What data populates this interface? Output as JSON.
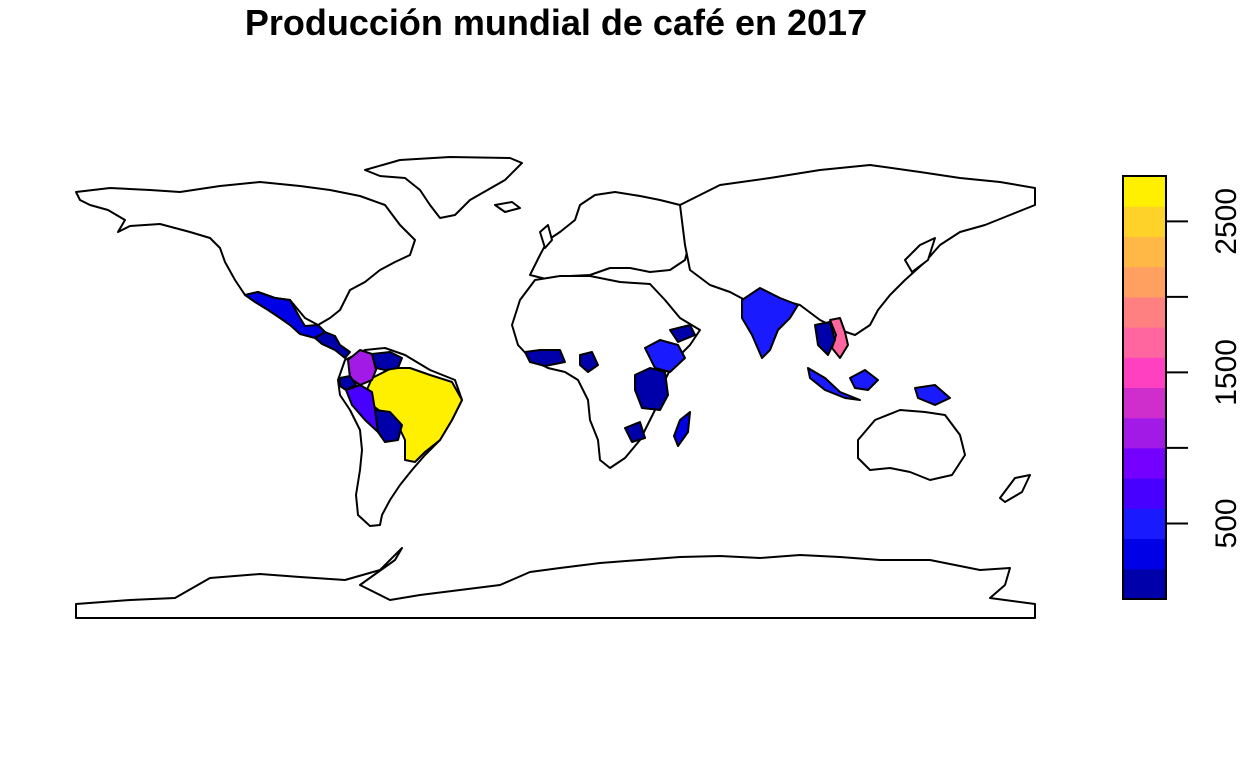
{
  "title": "Producción mundial de café en 2017",
  "legend": {
    "ticks": [
      500,
      1500,
      2500
    ],
    "tick_labels": [
      "500",
      "1500",
      "2500"
    ],
    "range": [
      0,
      2800
    ],
    "colors": [
      "#0000AA",
      "#0000E6",
      "#1A1AFF",
      "#4700FF",
      "#7400FF",
      "#A21AE6",
      "#CF2ECC",
      "#FF40C0",
      "#FF66A0",
      "#FF8080",
      "#FFA060",
      "#FFB845",
      "#FFD22A",
      "#FFF000"
    ]
  },
  "countries": [
    {
      "name": "Brazil",
      "value": 2800,
      "color": "#FFF000"
    },
    {
      "name": "Vietnam",
      "value": 1650,
      "color": "#FF66A0"
    },
    {
      "name": "Colombia",
      "value": 850,
      "color": "#A21AE6"
    },
    {
      "name": "Indonesia",
      "value": 650,
      "color": "#1A1AFF"
    },
    {
      "name": "Ethiopia",
      "value": 450,
      "color": "#1A1AFF"
    },
    {
      "name": "India",
      "value": 520,
      "color": "#1A1AFF"
    },
    {
      "name": "Honduras",
      "value": 450,
      "color": "#0000E6"
    },
    {
      "name": "Peru",
      "value": 600,
      "color": "#4700FF"
    },
    {
      "name": "Mexico",
      "value": 400,
      "color": "#0000E6"
    },
    {
      "name": "Uganda",
      "value": 300,
      "color": "#0000E6"
    },
    {
      "name": "Bolivia",
      "value": 100,
      "color": "#0000AA"
    },
    {
      "name": "Ecuador",
      "value": 100,
      "color": "#0000AA"
    },
    {
      "name": "Venezuela",
      "value": 100,
      "color": "#0000AA"
    },
    {
      "name": "Guatemala",
      "value": 250,
      "color": "#0000AA"
    },
    {
      "name": "Ivory Coast",
      "value": 150,
      "color": "#0000E6"
    },
    {
      "name": "Cameroon",
      "value": 100,
      "color": "#0000AA"
    },
    {
      "name": "Kenya",
      "value": 80,
      "color": "#0000AA"
    },
    {
      "name": "Tanzania",
      "value": 80,
      "color": "#0000AA"
    },
    {
      "name": "Madagascar",
      "value": 100,
      "color": "#0000E6"
    },
    {
      "name": "Yemen",
      "value": 50,
      "color": "#0000AA"
    },
    {
      "name": "Thailand",
      "value": 80,
      "color": "#0000AA"
    },
    {
      "name": "Laos",
      "value": 100,
      "color": "#0000AA"
    },
    {
      "name": "Papua New Guinea",
      "value": 50,
      "color": "#0000AA"
    },
    {
      "name": "Philippines",
      "value": 50,
      "color": "#0000AA"
    },
    {
      "name": "Malawi/Zambia",
      "value": 50,
      "color": "#0000AA"
    },
    {
      "name": "Guinea",
      "value": 50,
      "color": "#0000AA"
    },
    {
      "name": "Myanmar",
      "value": 50,
      "color": "#0000AA"
    }
  ]
}
